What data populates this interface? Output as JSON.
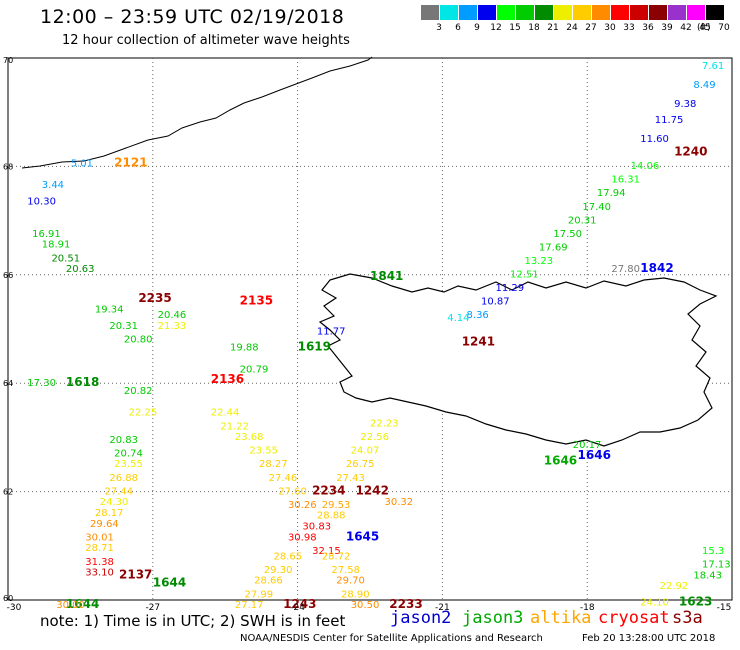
{
  "header": {
    "title": "12:00 – 23:59 UTC 02/19/2018",
    "subtitle": "12 hour collection of altimeter wave heights"
  },
  "color_scale": {
    "unit": "(ft)",
    "bins": [
      {
        "label": "3",
        "color": "#777777"
      },
      {
        "label": "6",
        "color": "#00e5e5"
      },
      {
        "label": "9",
        "color": "#009cff"
      },
      {
        "label": "12",
        "color": "#0000ee"
      },
      {
        "label": "15",
        "color": "#00ff00"
      },
      {
        "label": "18",
        "color": "#00cc00"
      },
      {
        "label": "21",
        "color": "#008b00"
      },
      {
        "label": "24",
        "color": "#eeee00"
      },
      {
        "label": "27",
        "color": "#ffcc00"
      },
      {
        "label": "30",
        "color": "#ff8c00"
      },
      {
        "label": "33",
        "color": "#ff0000"
      },
      {
        "label": "36",
        "color": "#cd0000"
      },
      {
        "label": "39",
        "color": "#8b0000"
      },
      {
        "label": "42",
        "color": "#9932cc"
      },
      {
        "label": "45",
        "color": "#ff00ff"
      },
      {
        "label": "70",
        "color": "#000000"
      }
    ]
  },
  "axes": {
    "x_ticks": [
      "-30",
      "-27",
      "-24",
      "-21",
      "-18",
      "-15"
    ],
    "y_ticks": [
      "70",
      "68",
      "66",
      "64",
      "62",
      "60"
    ]
  },
  "satellites": [
    {
      "name": "jason2",
      "color": "#0000cc"
    },
    {
      "name": "jason3",
      "color": "#00aa00"
    },
    {
      "name": "altika",
      "color": "#ffa500"
    },
    {
      "name": "cryosat",
      "color": "#ff0000"
    },
    {
      "name": "s3a",
      "color": "#8b0000"
    }
  ],
  "footer": {
    "note": "note: 1) Time is in UTC; 2) SWH is in feet",
    "credit": "NOAA/NESDIS Center for Satellite Applications and Research",
    "date": "Feb 20 13:28:00 UTC 2018"
  },
  "map_labels": [
    {
      "text": "7.61",
      "lon": -15.2,
      "lat": 69.8,
      "color": "#00e5e5"
    },
    {
      "text": "8.49",
      "lon": -15.8,
      "lat": 69.45,
      "color": "#009cff"
    },
    {
      "text": "9.38",
      "lon": -16.2,
      "lat": 69.1,
      "color": "#0000ee"
    },
    {
      "text": "11.75",
      "lon": -16.6,
      "lat": 68.8,
      "color": "#0000ee"
    },
    {
      "text": "11.60",
      "lon": -16.9,
      "lat": 68.45,
      "color": "#0000ee"
    },
    {
      "text": "1240",
      "lon": -16.2,
      "lat": 68.2,
      "color": "#8b0000"
    },
    {
      "text": "14.06",
      "lon": -17.1,
      "lat": 67.95,
      "color": "#00ff00"
    },
    {
      "text": "16.31",
      "lon": -17.5,
      "lat": 67.7,
      "color": "#00ff00"
    },
    {
      "text": "17.94",
      "lon": -17.8,
      "lat": 67.45,
      "color": "#00cc00"
    },
    {
      "text": "17.40",
      "lon": -18.1,
      "lat": 67.2,
      "color": "#00cc00"
    },
    {
      "text": "20.31",
      "lon": -18.4,
      "lat": 66.95,
      "color": "#00cc00"
    },
    {
      "text": "17.50",
      "lon": -18.7,
      "lat": 66.7,
      "color": "#00cc00"
    },
    {
      "text": "17.69",
      "lon": -19.0,
      "lat": 66.45,
      "color": "#00cc00"
    },
    {
      "text": "13.23",
      "lon": -19.3,
      "lat": 66.2,
      "color": "#00ff00"
    },
    {
      "text": "12.51",
      "lon": -19.6,
      "lat": 65.95,
      "color": "#00ff00"
    },
    {
      "text": "11.29",
      "lon": -19.9,
      "lat": 65.7,
      "color": "#0000ee"
    },
    {
      "text": "10.87",
      "lon": -20.2,
      "lat": 65.45,
      "color": "#0000ee"
    },
    {
      "text": "8.36",
      "lon": -20.5,
      "lat": 65.2,
      "color": "#009cff"
    },
    {
      "text": "1241",
      "lon": -20.6,
      "lat": 64.7,
      "color": "#8b0000"
    },
    {
      "text": "5.01",
      "lon": -28.7,
      "lat": 68.0,
      "color": "#009cff"
    },
    {
      "text": "2121",
      "lon": -27.8,
      "lat": 68.0,
      "color": "#ff8c00"
    },
    {
      "text": "3.44",
      "lon": -29.3,
      "lat": 67.6,
      "color": "#009cff"
    },
    {
      "text": "10.30",
      "lon": -29.6,
      "lat": 67.3,
      "color": "#0000ee"
    },
    {
      "text": "16.91",
      "lon": -29.5,
      "lat": 66.7,
      "color": "#00cc00"
    },
    {
      "text": "18.91",
      "lon": -29.3,
      "lat": 66.5,
      "color": "#00cc00"
    },
    {
      "text": "20.51",
      "lon": -29.1,
      "lat": 66.25,
      "color": "#008b00"
    },
    {
      "text": "20.63",
      "lon": -28.8,
      "lat": 66.05,
      "color": "#008b00"
    },
    {
      "text": "2235",
      "lon": -27.3,
      "lat": 65.5,
      "color": "#8b0000"
    },
    {
      "text": "2135",
      "lon": -25.2,
      "lat": 65.45,
      "color": "#ff0000"
    },
    {
      "text": "1841",
      "lon": -22.5,
      "lat": 65.9,
      "color": "#008b00"
    },
    {
      "text": "20.46",
      "lon": -26.9,
      "lat": 65.2,
      "color": "#00cc00"
    },
    {
      "text": "19.34",
      "lon": -28.2,
      "lat": 65.3,
      "color": "#00cc00"
    },
    {
      "text": "20.31",
      "lon": -27.9,
      "lat": 65.0,
      "color": "#00cc00"
    },
    {
      "text": "20.80",
      "lon": -27.6,
      "lat": 64.75,
      "color": "#00cc00"
    },
    {
      "text": "21.33",
      "lon": -26.9,
      "lat": 65.0,
      "color": "#eeee00"
    },
    {
      "text": "19.88",
      "lon": -25.4,
      "lat": 64.6,
      "color": "#00cc00"
    },
    {
      "text": "20.79",
      "lon": -25.2,
      "lat": 64.2,
      "color": "#00cc00"
    },
    {
      "text": "2136",
      "lon": -25.8,
      "lat": 64.0,
      "color": "#ff0000"
    },
    {
      "text": "1619",
      "lon": -24.0,
      "lat": 64.6,
      "color": "#008b00"
    },
    {
      "text": "17.30",
      "lon": -29.6,
      "lat": 63.95,
      "color": "#00cc00"
    },
    {
      "text": "1618",
      "lon": -28.8,
      "lat": 63.95,
      "color": "#008b00"
    },
    {
      "text": "20.82",
      "lon": -27.6,
      "lat": 63.8,
      "color": "#00cc00"
    },
    {
      "text": "22.25",
      "lon": -27.5,
      "lat": 63.4,
      "color": "#eeee00"
    },
    {
      "text": "20.83",
      "lon": -27.9,
      "lat": 62.9,
      "color": "#00cc00"
    },
    {
      "text": "20.74",
      "lon": -27.8,
      "lat": 62.65,
      "color": "#00cc00"
    },
    {
      "text": "22.44",
      "lon": -25.8,
      "lat": 63.4,
      "color": "#eeee00"
    },
    {
      "text": "21.22",
      "lon": -25.6,
      "lat": 63.15,
      "color": "#eeee00"
    },
    {
      "text": "23.68",
      "lon": -25.3,
      "lat": 62.95,
      "color": "#eeee00"
    },
    {
      "text": "23.55",
      "lon": -25.0,
      "lat": 62.7,
      "color": "#eeee00"
    },
    {
      "text": "23.55",
      "lon": -27.8,
      "lat": 62.45,
      "color": "#eeee00"
    },
    {
      "text": "26.88",
      "lon": -27.9,
      "lat": 62.2,
      "color": "#ffcc00"
    },
    {
      "text": "27.44",
      "lon": -28.0,
      "lat": 61.95,
      "color": "#ffcc00"
    },
    {
      "text": "24.30",
      "lon": -28.1,
      "lat": 61.75,
      "color": "#eeee00"
    },
    {
      "text": "28.17",
      "lon": -28.2,
      "lat": 61.55,
      "color": "#ffcc00"
    },
    {
      "text": "29.64",
      "lon": -28.3,
      "lat": 61.35,
      "color": "#ff8c00"
    },
    {
      "text": "30.01",
      "lon": -28.4,
      "lat": 61.1,
      "color": "#ff8c00"
    },
    {
      "text": "28.71",
      "lon": -28.4,
      "lat": 60.9,
      "color": "#ffcc00"
    },
    {
      "text": "31.38",
      "lon": -28.4,
      "lat": 60.65,
      "color": "#ff0000"
    },
    {
      "text": "33.10",
      "lon": -28.4,
      "lat": 60.45,
      "color": "#cd0000"
    },
    {
      "text": "2137",
      "lon": -27.7,
      "lat": 60.4,
      "color": "#8b0000"
    },
    {
      "text": "1644",
      "lon": -27.0,
      "lat": 60.25,
      "color": "#008b00"
    },
    {
      "text": "1644",
      "lon": -28.8,
      "lat": 59.85,
      "color": "#008b00"
    },
    {
      "text": "30.00",
      "lon": -29.0,
      "lat": 59.85,
      "color": "#ff8c00"
    },
    {
      "text": "28.27",
      "lon": -24.8,
      "lat": 62.45,
      "color": "#ffcc00"
    },
    {
      "text": "27.46",
      "lon": -24.6,
      "lat": 62.2,
      "color": "#ffcc00"
    },
    {
      "text": "27.60",
      "lon": -24.4,
      "lat": 61.95,
      "color": "#ffcc00"
    },
    {
      "text": "2234",
      "lon": -23.7,
      "lat": 61.95,
      "color": "#8b0000"
    },
    {
      "text": "30.26",
      "lon": -24.2,
      "lat": 61.7,
      "color": "#ff8c00"
    },
    {
      "text": "29.53",
      "lon": -23.5,
      "lat": 61.7,
      "color": "#ffa500"
    },
    {
      "text": "28.88",
      "lon": -23.6,
      "lat": 61.5,
      "color": "#ffcc00"
    },
    {
      "text": "30.83",
      "lon": -23.9,
      "lat": 61.3,
      "color": "#ff0000"
    },
    {
      "text": "1645",
      "lon": -23.0,
      "lat": 61.1,
      "color": "#0000ee"
    },
    {
      "text": "30.98",
      "lon": -24.2,
      "lat": 61.1,
      "color": "#ff0000"
    },
    {
      "text": "32.15",
      "lon": -23.7,
      "lat": 60.85,
      "color": "#ff0000"
    },
    {
      "text": "28.65",
      "lon": -24.5,
      "lat": 60.75,
      "color": "#ffcc00"
    },
    {
      "text": "29.30",
      "lon": -24.7,
      "lat": 60.5,
      "color": "#ffcc00"
    },
    {
      "text": "28.66",
      "lon": -24.9,
      "lat": 60.3,
      "color": "#ffcc00"
    },
    {
      "text": "27.99",
      "lon": -25.1,
      "lat": 60.05,
      "color": "#ffcc00"
    },
    {
      "text": "27.17",
      "lon": -25.3,
      "lat": 59.85,
      "color": "#ffcc00"
    },
    {
      "text": "1243",
      "lon": -24.3,
      "lat": 59.85,
      "color": "#8b0000"
    },
    {
      "text": "28.72",
      "lon": -23.5,
      "lat": 60.75,
      "color": "#ffcc00"
    },
    {
      "text": "27.58",
      "lon": -23.3,
      "lat": 60.5,
      "color": "#ffcc00"
    },
    {
      "text": "29.70",
      "lon": -23.2,
      "lat": 60.3,
      "color": "#ff8c00"
    },
    {
      "text": "28.90",
      "lon": -23.1,
      "lat": 60.05,
      "color": "#ffcc00"
    },
    {
      "text": "30.50",
      "lon": -22.9,
      "lat": 59.85,
      "color": "#ff8c00"
    },
    {
      "text": "2233",
      "lon": -22.1,
      "lat": 59.85,
      "color": "#8b0000"
    },
    {
      "text": "27.43",
      "lon": -23.2,
      "lat": 62.2,
      "color": "#ffcc00"
    },
    {
      "text": "26.75",
      "lon": -23.0,
      "lat": 62.45,
      "color": "#ffcc00"
    },
    {
      "text": "24.07",
      "lon": -22.9,
      "lat": 62.7,
      "color": "#eeee00"
    },
    {
      "text": "22.56",
      "lon": -22.7,
      "lat": 62.95,
      "color": "#eeee00"
    },
    {
      "text": "22.23",
      "lon": -22.5,
      "lat": 63.2,
      "color": "#eeee00"
    },
    {
      "text": "1242",
      "lon": -22.8,
      "lat": 61.95,
      "color": "#8b0000"
    },
    {
      "text": "30.32",
      "lon": -22.2,
      "lat": 61.75,
      "color": "#ff8c00"
    },
    {
      "text": "11.77",
      "lon": -23.6,
      "lat": 64.9,
      "color": "#0000ee"
    },
    {
      "text": "4.14",
      "lon": -20.9,
      "lat": 65.15,
      "color": "#00e5e5"
    },
    {
      "text": "20.17",
      "lon": -18.3,
      "lat": 62.8,
      "color": "#00cc00"
    },
    {
      "text": "1646",
      "lon": -18.2,
      "lat": 62.6,
      "color": "#0000ee"
    },
    {
      "text": "1646",
      "lon": -18.9,
      "lat": 62.5,
      "color": "#00aa00"
    },
    {
      "text": "1842",
      "lon": -16.9,
      "lat": 66.05,
      "color": "#0000ee"
    },
    {
      "text": "27.80",
      "lon": -17.5,
      "lat": 66.05,
      "color": "#777777"
    },
    {
      "text": "1623",
      "lon": -16.1,
      "lat": 59.9,
      "color": "#008b00"
    },
    {
      "text": "24.10",
      "lon": -16.9,
      "lat": 59.9,
      "color": "#eeee00"
    },
    {
      "text": "18.43",
      "lon": -15.8,
      "lat": 60.4,
      "color": "#00cc00"
    },
    {
      "text": "17.13",
      "lon": -15.4,
      "lat": 60.6,
      "color": "#00cc00"
    },
    {
      "text": "15.3",
      "lon": -15.1,
      "lat": 60.85,
      "color": "#00ff00"
    },
    {
      "text": "22.92",
      "lon": -16.5,
      "lat": 60.2,
      "color": "#eeee00"
    }
  ]
}
